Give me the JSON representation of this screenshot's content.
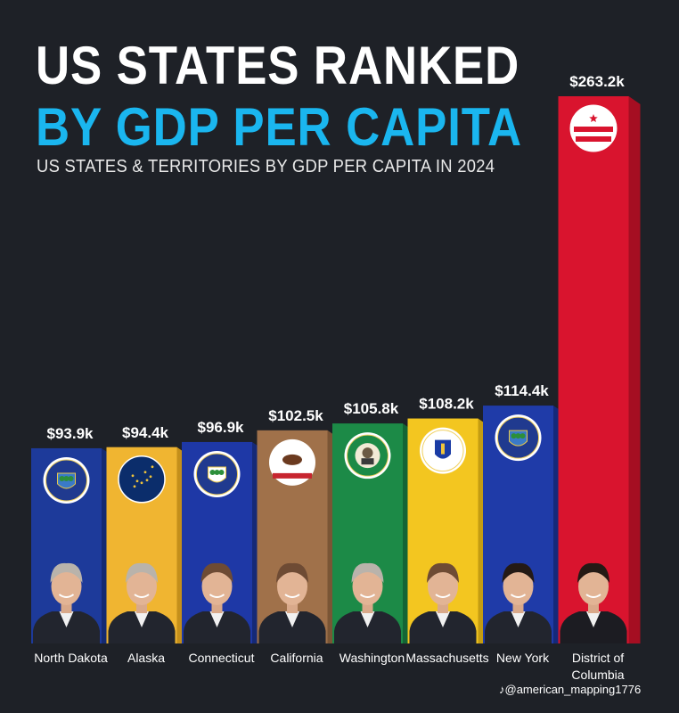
{
  "header": {
    "title_line1": "US STATES RANKED",
    "title_line2": "BY GDP PER CAPITA",
    "subtitle": "US STATES & TERRITORIES BY GDP PER CAPITA IN 2024"
  },
  "watermark": "@american_mapping1776",
  "chart_data": {
    "type": "bar",
    "title": "US STATES RANKED BY GDP PER CAPITA",
    "subtitle": "US STATES & TERRITORIES BY GDP PER CAPITA IN 2024",
    "categories": [
      "North Dakota",
      "Alaska",
      "Connecticut",
      "California",
      "Washington",
      "Massachusetts",
      "New York",
      "District of Columbia"
    ],
    "values": [
      93.9,
      94.4,
      96.9,
      102.5,
      105.8,
      108.2,
      114.4,
      263.2
    ],
    "value_labels": [
      "$93.9k",
      "$94.4k",
      "$96.9k",
      "$102.5k",
      "$105.8k",
      "$108.2k",
      "$114.4k",
      "$263.2k"
    ],
    "unit": "thousand USD",
    "colors": [
      "#1d3a9a",
      "#f0b531",
      "#1e38a6",
      "#a0714a",
      "#1c8a47",
      "#f3c620",
      "#1f3ba8",
      "#d9142e"
    ],
    "side_colors": [
      "#142a72",
      "#c48f1b",
      "#152977",
      "#7a5535",
      "#146535",
      "#c49c12",
      "#15297a",
      "#a50e22"
    ],
    "emblems": [
      "north-dakota-seal-icon",
      "alaska-flag-icon",
      "connecticut-seal-icon",
      "california-flag-icon",
      "washington-seal-icon",
      "massachusetts-seal-icon",
      "new-york-seal-icon",
      "dc-flag-icon"
    ],
    "grid": false,
    "legend": "none"
  }
}
